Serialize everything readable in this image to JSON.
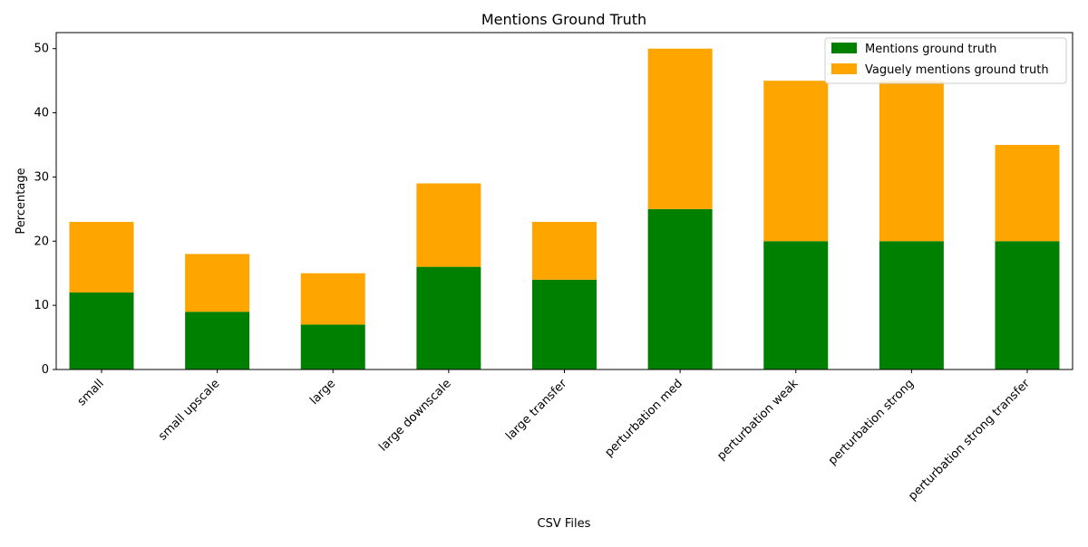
{
  "chart_data": {
    "type": "bar",
    "stacked": true,
    "title": "Mentions Ground Truth",
    "xlabel": "CSV Files",
    "ylabel": "Percentage",
    "categories": [
      "small",
      "small upscale",
      "large",
      "large downscale",
      "large transfer",
      "perturbation med",
      "perturbation weak",
      "perturbation strong",
      "perturbation strong transfer"
    ],
    "series": [
      {
        "name": "Mentions ground truth",
        "color": "#008000",
        "values": [
          12,
          9,
          7,
          16,
          14,
          25,
          20,
          20,
          20
        ]
      },
      {
        "name": "Vaguely mentions ground truth",
        "color": "#ffa500",
        "values": [
          11,
          9,
          8,
          13,
          9,
          25,
          25,
          25,
          15
        ]
      }
    ],
    "ylim": [
      0,
      52.5
    ],
    "yticks": [
      0,
      10,
      20,
      30,
      40,
      50
    ],
    "grid": false,
    "legend": "top-right"
  }
}
